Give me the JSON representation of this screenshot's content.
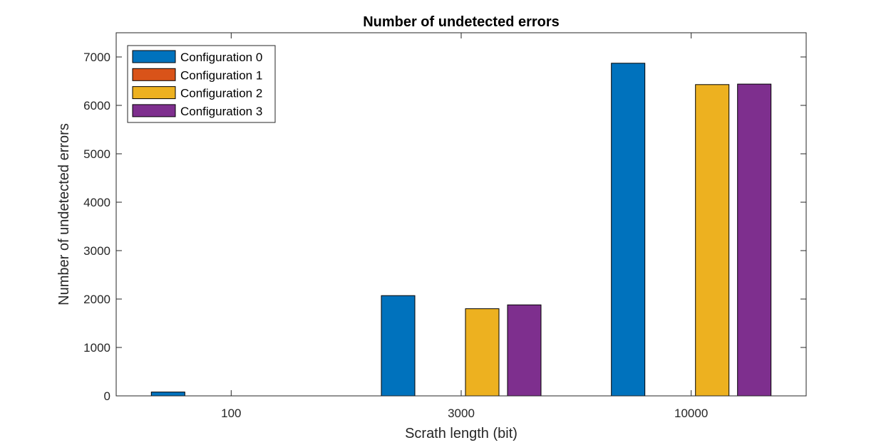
{
  "chart_data": {
    "type": "bar",
    "title": "Number of undetected errors",
    "xlabel": "Scrath length (bit)",
    "ylabel": "Number of undetected errors",
    "categories": [
      "100",
      "3000",
      "10000"
    ],
    "ylim": [
      0,
      7500
    ],
    "yticks": [
      0,
      1000,
      2000,
      3000,
      4000,
      5000,
      6000,
      7000
    ],
    "grid": false,
    "legend_position": "top-left",
    "series": [
      {
        "name": "Configuration 0",
        "color": "#0072BD",
        "values": [
          80,
          2070,
          6870
        ]
      },
      {
        "name": "Configuration 1",
        "color": "#D95319",
        "values": [
          0,
          0,
          0
        ]
      },
      {
        "name": "Configuration 2",
        "color": "#EDB120",
        "values": [
          0,
          1800,
          6430
        ]
      },
      {
        "name": "Configuration 3",
        "color": "#7E2F8E",
        "values": [
          0,
          1880,
          6440
        ]
      }
    ]
  }
}
